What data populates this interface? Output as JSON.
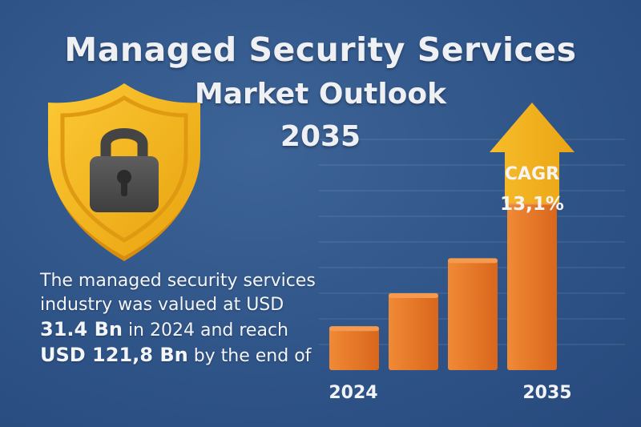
{
  "title": {
    "line1": "Managed Security Services",
    "line2": "Market Outlook",
    "line3": "2035"
  },
  "description": {
    "line1": "The managed security services",
    "line2": "industry was valued at USD",
    "line3_value": "31.4 Bn",
    "line3_rest": " in 2024 and reach",
    "line4_value": "USD 121,8 Bn",
    "line4_rest": " by the end of"
  },
  "icon": "shield-lock-icon",
  "colors": {
    "background": "#2f5488",
    "bar": "#e8782a",
    "arrow": "#f5b421",
    "shield": "#f5b421",
    "text": "#eef0f4"
  },
  "chart_data": {
    "type": "bar",
    "categories": [
      "2024",
      "",
      "",
      "2035"
    ],
    "values": [
      31.4,
      55,
      80,
      121.8
    ],
    "tick_labels": [
      "2024",
      "2035"
    ],
    "annotation": {
      "label_line1": "CAGR",
      "label_line2": "13,1%"
    },
    "grid": true
  }
}
